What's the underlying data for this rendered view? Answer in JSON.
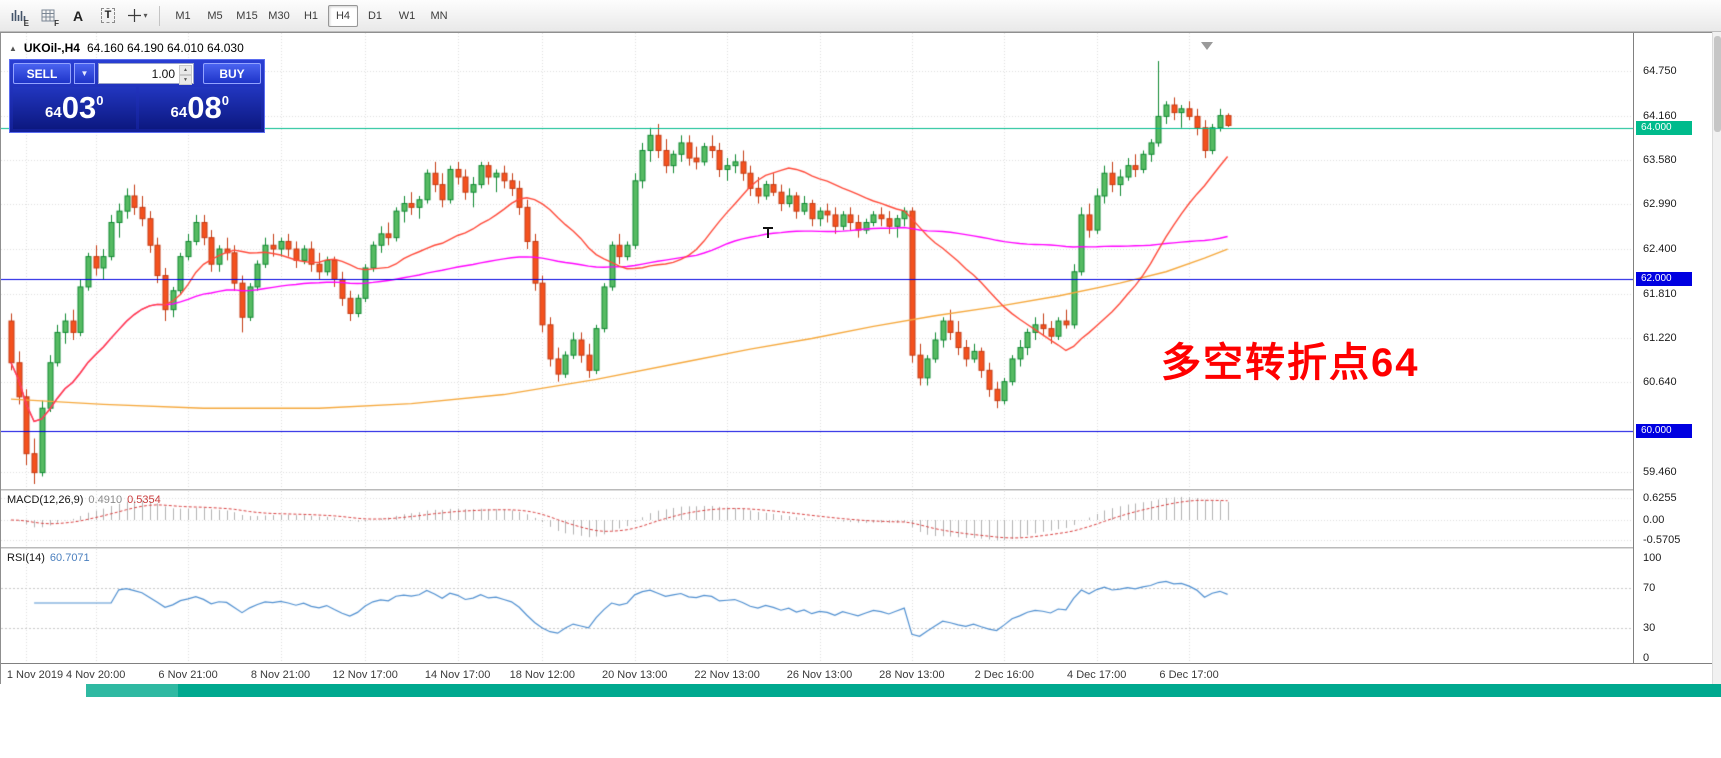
{
  "toolbar": {
    "icons": [
      {
        "name": "chart-e-icon",
        "glyph": "E"
      },
      {
        "name": "grid-f-icon",
        "glyph": "F"
      },
      {
        "name": "font-a-icon",
        "glyph": "A"
      },
      {
        "name": "text-label-icon",
        "glyph": "T"
      },
      {
        "name": "crosshair-icon",
        "glyph": ""
      }
    ],
    "caret_glyph": "▾",
    "timeframes": [
      "M1",
      "M5",
      "M15",
      "M30",
      "H1",
      "H4",
      "D1",
      "W1",
      "MN"
    ],
    "active_timeframe": "H4"
  },
  "chart_header": {
    "collapse_icon": "▲",
    "symbol_title": "UKOil-,H4",
    "ohlc": "64.160 64.190 64.010 64.030"
  },
  "trade_panel": {
    "sell_label": "SELL",
    "buy_label": "BUY",
    "volume": "1.00",
    "dropdown_caret": "▼",
    "spin_up": "▲",
    "spin_down": "▼",
    "bid": {
      "main": "64",
      "big": "03",
      "sup": "0"
    },
    "ask": {
      "main": "64",
      "big": "08",
      "sup": "0"
    }
  },
  "annotation": {
    "text": "多空转折点64",
    "color": "#FF0000"
  },
  "indicator_labels": {
    "macd_name": "MACD(12,26,9)",
    "macd_value_main": "0.4910",
    "macd_value_signal": "0.5354",
    "rsi_name": "RSI(14)",
    "rsi_value": "60.7071"
  },
  "chart_data": {
    "type": "candlestick",
    "title": "UKOil-,H4",
    "ohlc_current": {
      "open": 64.16,
      "high": 64.19,
      "low": 64.01,
      "close": 64.03
    },
    "ylim": [
      59.23,
      65.25
    ],
    "price_axis_labels": [
      {
        "text": "64.750",
        "value": 64.75
      },
      {
        "text": "64.160",
        "value": 64.16
      },
      {
        "text": "63.580",
        "value": 63.58
      },
      {
        "text": "62.990",
        "value": 62.99
      },
      {
        "text": "62.400",
        "value": 62.4
      },
      {
        "text": "61.810",
        "value": 61.81
      },
      {
        "text": "61.220",
        "value": 61.22
      },
      {
        "text": "60.640",
        "value": 60.64
      },
      {
        "text": "59.460",
        "value": 59.46
      }
    ],
    "hlines": [
      {
        "price": 64.0,
        "label": "64.000",
        "color": "#00bb8c"
      },
      {
        "price": 62.0,
        "label": "62.000",
        "color": "#0000e1"
      },
      {
        "price": 60.0,
        "label": "60.000",
        "color": "#0000e1"
      }
    ],
    "candles": [
      [
        61.45,
        61.55,
        60.8,
        60.9
      ],
      [
        60.9,
        61.05,
        60.35,
        60.45
      ],
      [
        60.45,
        60.55,
        59.55,
        59.7
      ],
      [
        59.7,
        59.9,
        59.3,
        59.45
      ],
      [
        59.45,
        60.4,
        59.4,
        60.3
      ],
      [
        60.3,
        61.0,
        60.25,
        60.9
      ],
      [
        60.9,
        61.4,
        60.85,
        61.3
      ],
      [
        61.3,
        61.55,
        61.15,
        61.45
      ],
      [
        61.45,
        61.6,
        61.2,
        61.3
      ],
      [
        61.3,
        62.0,
        61.25,
        61.9
      ],
      [
        61.9,
        62.35,
        61.85,
        62.3
      ],
      [
        62.3,
        62.45,
        62.05,
        62.15
      ],
      [
        62.15,
        62.4,
        62.0,
        62.3
      ],
      [
        62.3,
        62.85,
        62.25,
        62.75
      ],
      [
        62.75,
        63.0,
        62.55,
        62.9
      ],
      [
        62.9,
        63.2,
        62.8,
        63.1
      ],
      [
        63.1,
        63.25,
        62.85,
        62.95
      ],
      [
        62.95,
        63.1,
        62.7,
        62.8
      ],
      [
        62.8,
        62.9,
        62.35,
        62.45
      ],
      [
        62.45,
        62.55,
        61.95,
        62.05
      ],
      [
        62.05,
        62.15,
        61.45,
        61.6
      ],
      [
        61.6,
        61.9,
        61.5,
        61.85
      ],
      [
        61.85,
        62.35,
        61.8,
        62.3
      ],
      [
        62.3,
        62.6,
        62.25,
        62.5
      ],
      [
        62.5,
        62.85,
        62.45,
        62.75
      ],
      [
        62.75,
        62.85,
        62.45,
        62.55
      ],
      [
        62.55,
        62.65,
        62.1,
        62.2
      ],
      [
        62.2,
        62.45,
        62.1,
        62.4
      ],
      [
        62.4,
        62.55,
        62.25,
        62.35
      ],
      [
        62.35,
        62.45,
        61.85,
        61.95
      ],
      [
        61.95,
        62.05,
        61.3,
        61.5
      ],
      [
        61.5,
        61.95,
        61.45,
        61.9
      ],
      [
        61.9,
        62.25,
        61.85,
        62.2
      ],
      [
        62.2,
        62.55,
        62.15,
        62.45
      ],
      [
        62.45,
        62.6,
        62.3,
        62.4
      ],
      [
        62.4,
        62.55,
        62.3,
        62.5
      ],
      [
        62.5,
        62.6,
        62.3,
        62.4
      ],
      [
        62.4,
        62.5,
        62.15,
        62.25
      ],
      [
        62.25,
        62.45,
        62.2,
        62.4
      ],
      [
        62.4,
        62.5,
        62.1,
        62.2
      ],
      [
        62.2,
        62.35,
        62.0,
        62.1
      ],
      [
        62.1,
        62.3,
        62.05,
        62.25
      ],
      [
        62.25,
        62.3,
        61.9,
        62.0
      ],
      [
        62.0,
        62.1,
        61.65,
        61.75
      ],
      [
        61.75,
        61.85,
        61.45,
        61.55
      ],
      [
        61.55,
        61.8,
        61.5,
        61.75
      ],
      [
        61.75,
        62.2,
        61.7,
        62.15
      ],
      [
        62.15,
        62.5,
        62.1,
        62.45
      ],
      [
        62.45,
        62.7,
        62.35,
        62.6
      ],
      [
        62.6,
        62.75,
        62.45,
        62.55
      ],
      [
        62.55,
        62.95,
        62.5,
        62.9
      ],
      [
        62.9,
        63.1,
        62.75,
        63.0
      ],
      [
        63.0,
        63.15,
        62.85,
        62.95
      ],
      [
        62.95,
        63.1,
        62.8,
        63.05
      ],
      [
        63.05,
        63.45,
        63.0,
        63.4
      ],
      [
        63.4,
        63.55,
        63.15,
        63.25
      ],
      [
        63.25,
        63.4,
        62.95,
        63.05
      ],
      [
        63.05,
        63.5,
        63.0,
        63.45
      ],
      [
        63.45,
        63.55,
        63.25,
        63.35
      ],
      [
        63.35,
        63.45,
        63.05,
        63.15
      ],
      [
        63.15,
        63.35,
        62.95,
        63.25
      ],
      [
        63.25,
        63.55,
        63.2,
        63.5
      ],
      [
        63.5,
        63.55,
        63.25,
        63.35
      ],
      [
        63.35,
        63.45,
        63.15,
        63.4
      ],
      [
        63.4,
        63.5,
        63.2,
        63.3
      ],
      [
        63.3,
        63.4,
        63.1,
        63.2
      ],
      [
        63.2,
        63.3,
        62.85,
        62.95
      ],
      [
        62.95,
        63.05,
        62.4,
        62.5
      ],
      [
        62.5,
        62.6,
        61.85,
        61.95
      ],
      [
        61.95,
        62.05,
        61.3,
        61.4
      ],
      [
        61.4,
        61.5,
        60.85,
        60.95
      ],
      [
        60.95,
        61.1,
        60.65,
        60.75
      ],
      [
        60.75,
        61.05,
        60.7,
        61.0
      ],
      [
        61.0,
        61.3,
        60.95,
        61.2
      ],
      [
        61.2,
        61.3,
        60.9,
        61.0
      ],
      [
        61.0,
        61.15,
        60.7,
        60.8
      ],
      [
        60.8,
        61.4,
        60.75,
        61.35
      ],
      [
        61.35,
        61.95,
        61.3,
        61.9
      ],
      [
        61.9,
        62.5,
        61.85,
        62.45
      ],
      [
        62.45,
        62.6,
        62.2,
        62.3
      ],
      [
        62.3,
        62.5,
        62.25,
        62.45
      ],
      [
        62.45,
        63.4,
        62.4,
        63.3
      ],
      [
        63.3,
        63.8,
        63.2,
        63.7
      ],
      [
        63.7,
        64.0,
        63.55,
        63.9
      ],
      [
        63.9,
        64.05,
        63.6,
        63.7
      ],
      [
        63.7,
        63.85,
        63.4,
        63.5
      ],
      [
        63.5,
        63.7,
        63.4,
        63.65
      ],
      [
        63.65,
        63.9,
        63.55,
        63.8
      ],
      [
        63.8,
        63.9,
        63.5,
        63.6
      ],
      [
        63.6,
        63.75,
        63.45,
        63.55
      ],
      [
        63.55,
        63.8,
        63.5,
        63.75
      ],
      [
        63.75,
        63.9,
        63.6,
        63.7
      ],
      [
        63.7,
        63.8,
        63.35,
        63.45
      ],
      [
        63.45,
        63.6,
        63.3,
        63.5
      ],
      [
        63.5,
        63.65,
        63.4,
        63.55
      ],
      [
        63.55,
        63.7,
        63.3,
        63.4
      ],
      [
        63.4,
        63.5,
        63.1,
        63.2
      ],
      [
        63.2,
        63.35,
        63.0,
        63.1
      ],
      [
        63.1,
        63.3,
        63.05,
        63.25
      ],
      [
        63.25,
        63.4,
        63.1,
        63.15
      ],
      [
        63.15,
        63.25,
        62.9,
        63.0
      ],
      [
        63.0,
        63.2,
        62.95,
        63.1
      ],
      [
        63.1,
        63.15,
        62.8,
        62.9
      ],
      [
        62.9,
        63.1,
        62.85,
        63.0
      ],
      [
        63.0,
        63.05,
        62.7,
        62.8
      ],
      [
        62.8,
        62.95,
        62.7,
        62.9
      ],
      [
        62.9,
        63.0,
        62.75,
        62.85
      ],
      [
        62.85,
        62.95,
        62.6,
        62.7
      ],
      [
        62.7,
        62.9,
        62.65,
        62.85
      ],
      [
        62.85,
        62.95,
        62.65,
        62.75
      ],
      [
        62.75,
        62.85,
        62.55,
        62.65
      ],
      [
        62.65,
        62.8,
        62.6,
        62.75
      ],
      [
        62.75,
        62.9,
        62.7,
        62.85
      ],
      [
        62.85,
        62.95,
        62.7,
        62.8
      ],
      [
        62.8,
        62.9,
        62.6,
        62.7
      ],
      [
        62.7,
        62.85,
        62.55,
        62.8
      ],
      [
        62.8,
        62.95,
        62.7,
        62.9
      ],
      [
        62.9,
        62.95,
        60.9,
        61.0
      ],
      [
        61.0,
        61.15,
        60.6,
        60.7
      ],
      [
        60.7,
        61.0,
        60.6,
        60.95
      ],
      [
        60.95,
        61.3,
        60.9,
        61.2
      ],
      [
        61.2,
        61.5,
        61.1,
        61.45
      ],
      [
        61.45,
        61.6,
        61.2,
        61.3
      ],
      [
        61.3,
        61.45,
        61.0,
        61.1
      ],
      [
        61.1,
        61.2,
        60.85,
        60.95
      ],
      [
        60.95,
        61.15,
        60.9,
        61.05
      ],
      [
        61.05,
        61.1,
        60.7,
        60.8
      ],
      [
        60.8,
        60.9,
        60.45,
        60.55
      ],
      [
        60.55,
        60.65,
        60.3,
        60.4
      ],
      [
        60.4,
        60.7,
        60.35,
        60.65
      ],
      [
        60.65,
        61.0,
        60.6,
        60.95
      ],
      [
        60.95,
        61.2,
        60.85,
        61.1
      ],
      [
        61.1,
        61.35,
        61.0,
        61.3
      ],
      [
        61.3,
        61.5,
        61.2,
        61.4
      ],
      [
        61.4,
        61.55,
        61.25,
        61.35
      ],
      [
        61.35,
        61.45,
        61.15,
        61.25
      ],
      [
        61.25,
        61.5,
        61.2,
        61.45
      ],
      [
        61.45,
        61.6,
        61.35,
        61.4
      ],
      [
        61.4,
        62.2,
        61.35,
        62.1
      ],
      [
        62.1,
        62.95,
        62.05,
        62.85
      ],
      [
        62.85,
        63.0,
        62.55,
        62.65
      ],
      [
        62.65,
        63.2,
        62.6,
        63.1
      ],
      [
        63.1,
        63.5,
        63.0,
        63.4
      ],
      [
        63.4,
        63.55,
        63.15,
        63.25
      ],
      [
        63.25,
        63.45,
        63.1,
        63.35
      ],
      [
        63.35,
        63.6,
        63.3,
        63.5
      ],
      [
        63.5,
        63.65,
        63.35,
        63.45
      ],
      [
        63.45,
        63.7,
        63.4,
        63.65
      ],
      [
        63.65,
        63.85,
        63.55,
        63.8
      ],
      [
        63.8,
        64.88,
        63.75,
        64.15
      ],
      [
        64.15,
        64.35,
        64.05,
        64.3
      ],
      [
        64.3,
        64.4,
        64.1,
        64.2
      ],
      [
        64.2,
        64.3,
        64.0,
        64.25
      ],
      [
        64.25,
        64.35,
        64.1,
        64.15
      ],
      [
        64.15,
        64.25,
        63.9,
        64.0
      ],
      [
        64.0,
        64.1,
        63.6,
        63.7
      ],
      [
        63.7,
        64.05,
        63.65,
        64.0
      ],
      [
        64.0,
        64.25,
        63.95,
        64.16
      ],
      [
        64.16,
        64.19,
        64.01,
        64.03
      ]
    ],
    "moving_averages": {
      "fast": {
        "type": "sma",
        "period": 21,
        "color": "#ff4a3a"
      },
      "medium": {
        "type": "sma",
        "period": 90,
        "color": "#ff00ff"
      },
      "slow": {
        "color": "#f5a83c",
        "points": [
          [
            0,
            60.42
          ],
          [
            12,
            60.35
          ],
          [
            25,
            60.3
          ],
          [
            40,
            60.3
          ],
          [
            52,
            60.36
          ],
          [
            64,
            60.48
          ],
          [
            76,
            60.68
          ],
          [
            88,
            60.92
          ],
          [
            96,
            61.08
          ],
          [
            104,
            61.22
          ],
          [
            112,
            61.38
          ],
          [
            120,
            61.52
          ],
          [
            128,
            61.64
          ],
          [
            136,
            61.78
          ],
          [
            144,
            61.95
          ],
          [
            150,
            62.1
          ],
          [
            155,
            62.28
          ],
          [
            158,
            62.4
          ]
        ]
      }
    },
    "macd": {
      "fast": 12,
      "slow": 26,
      "signal": 9,
      "current_main": 0.491,
      "current_signal": 0.5354,
      "axis_labels": [
        {
          "text": "0.6255",
          "value": 0.6255
        },
        {
          "text": "0.00",
          "value": 0
        },
        {
          "text": "-0.5705",
          "value": -0.5705
        }
      ],
      "histogram_color": "#b2b2b2",
      "signal_color": "#d84040"
    },
    "rsi": {
      "period": 14,
      "current": 60.7071,
      "levels": [
        70,
        30
      ],
      "axis_labels": [
        {
          "text": "100",
          "value": 100
        },
        {
          "text": "70",
          "value": 70
        },
        {
          "text": "30",
          "value": 30
        },
        {
          "text": "0",
          "value": 0
        }
      ],
      "line_color": "#4f8fd0"
    },
    "time_axis": [
      {
        "bar": 2,
        "text": "1 Nov 2019"
      },
      {
        "bar": 11,
        "text": "4 Nov 20:00"
      },
      {
        "bar": 23,
        "text": "6 Nov 21:00"
      },
      {
        "bar": 35,
        "text": "8 Nov 21:00"
      },
      {
        "bar": 46,
        "text": "12 Nov 17:00"
      },
      {
        "bar": 58,
        "text": "14 Nov 17:00"
      },
      {
        "bar": 69,
        "text": "18 Nov 12:00"
      },
      {
        "bar": 81,
        "text": "20 Nov 13:00"
      },
      {
        "bar": 93,
        "text": "22 Nov 13:00"
      },
      {
        "bar": 105,
        "text": "26 Nov 13:00"
      },
      {
        "bar": 117,
        "text": "28 Nov 13:00"
      },
      {
        "bar": 129,
        "text": "2 Dec 16:00"
      },
      {
        "bar": 141,
        "text": "4 Dec 17:00"
      },
      {
        "bar": 153,
        "text": "6 Dec 17:00"
      }
    ],
    "colors": {
      "bull_fill": "#57bb63",
      "bull_stroke": "#108a32",
      "bear_fill": "#f4511e",
      "bear_stroke": "#c43c14",
      "grid": "#dedede",
      "background": "#ffffff"
    }
  }
}
